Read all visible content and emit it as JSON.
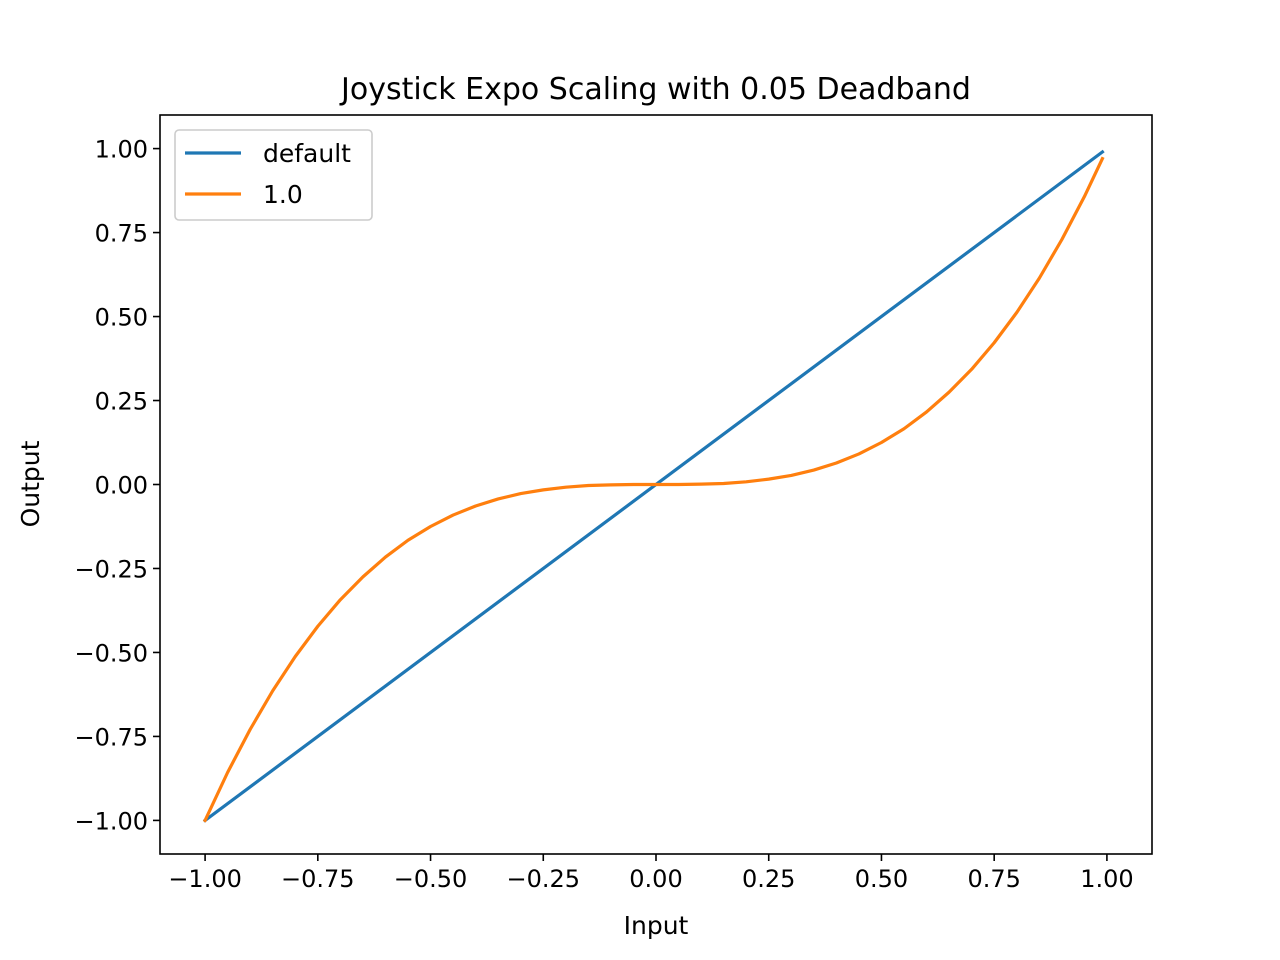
{
  "chart_data": {
    "type": "line",
    "title": "Joystick Expo Scaling with 0.05 Deadband",
    "xlabel": "Input",
    "ylabel": "Output",
    "xlim": [
      -1.1,
      1.1
    ],
    "ylim": [
      -1.1,
      1.1
    ],
    "xticks": [
      -1.0,
      -0.75,
      -0.5,
      -0.25,
      0.0,
      0.25,
      0.5,
      0.75,
      1.0
    ],
    "xtick_labels": [
      "−1.00",
      "−0.75",
      "−0.50",
      "−0.25",
      "0.00",
      "0.25",
      "0.50",
      "0.75",
      "1.00"
    ],
    "yticks": [
      -1.0,
      -0.75,
      -0.5,
      -0.25,
      0.0,
      0.25,
      0.5,
      0.75,
      1.0
    ],
    "ytick_labels": [
      "−1.00",
      "−0.75",
      "−0.50",
      "−0.25",
      "0.00",
      "0.25",
      "0.50",
      "0.75",
      "1.00"
    ],
    "grid": false,
    "legend_position": "top-left",
    "series": [
      {
        "name": "default",
        "color": "#1f77b4",
        "points": [
          [
            -1.0,
            -1.0
          ],
          [
            0.99,
            0.99
          ]
        ]
      },
      {
        "name": "1.0",
        "color": "#ff7f0e",
        "points": [
          [
            -1.0,
            -1.0
          ],
          [
            -0.95,
            -0.857
          ],
          [
            -0.9,
            -0.729
          ],
          [
            -0.85,
            -0.614
          ],
          [
            -0.8,
            -0.512
          ],
          [
            -0.75,
            -0.422
          ],
          [
            -0.7,
            -0.343
          ],
          [
            -0.65,
            -0.275
          ],
          [
            -0.6,
            -0.216
          ],
          [
            -0.55,
            -0.166
          ],
          [
            -0.5,
            -0.125
          ],
          [
            -0.45,
            -0.091
          ],
          [
            -0.4,
            -0.064
          ],
          [
            -0.35,
            -0.043
          ],
          [
            -0.3,
            -0.027
          ],
          [
            -0.25,
            -0.016
          ],
          [
            -0.2,
            -0.008
          ],
          [
            -0.15,
            -0.003
          ],
          [
            -0.1,
            -0.001
          ],
          [
            -0.05,
            0.0
          ],
          [
            0.0,
            0.0
          ],
          [
            0.05,
            0.0
          ],
          [
            0.1,
            0.001
          ],
          [
            0.15,
            0.003
          ],
          [
            0.2,
            0.008
          ],
          [
            0.25,
            0.016
          ],
          [
            0.3,
            0.027
          ],
          [
            0.35,
            0.043
          ],
          [
            0.4,
            0.064
          ],
          [
            0.45,
            0.091
          ],
          [
            0.5,
            0.125
          ],
          [
            0.55,
            0.166
          ],
          [
            0.6,
            0.216
          ],
          [
            0.65,
            0.275
          ],
          [
            0.7,
            0.343
          ],
          [
            0.75,
            0.422
          ],
          [
            0.8,
            0.512
          ],
          [
            0.85,
            0.614
          ],
          [
            0.9,
            0.729
          ],
          [
            0.95,
            0.857
          ],
          [
            0.99,
            0.97
          ]
        ]
      }
    ]
  }
}
